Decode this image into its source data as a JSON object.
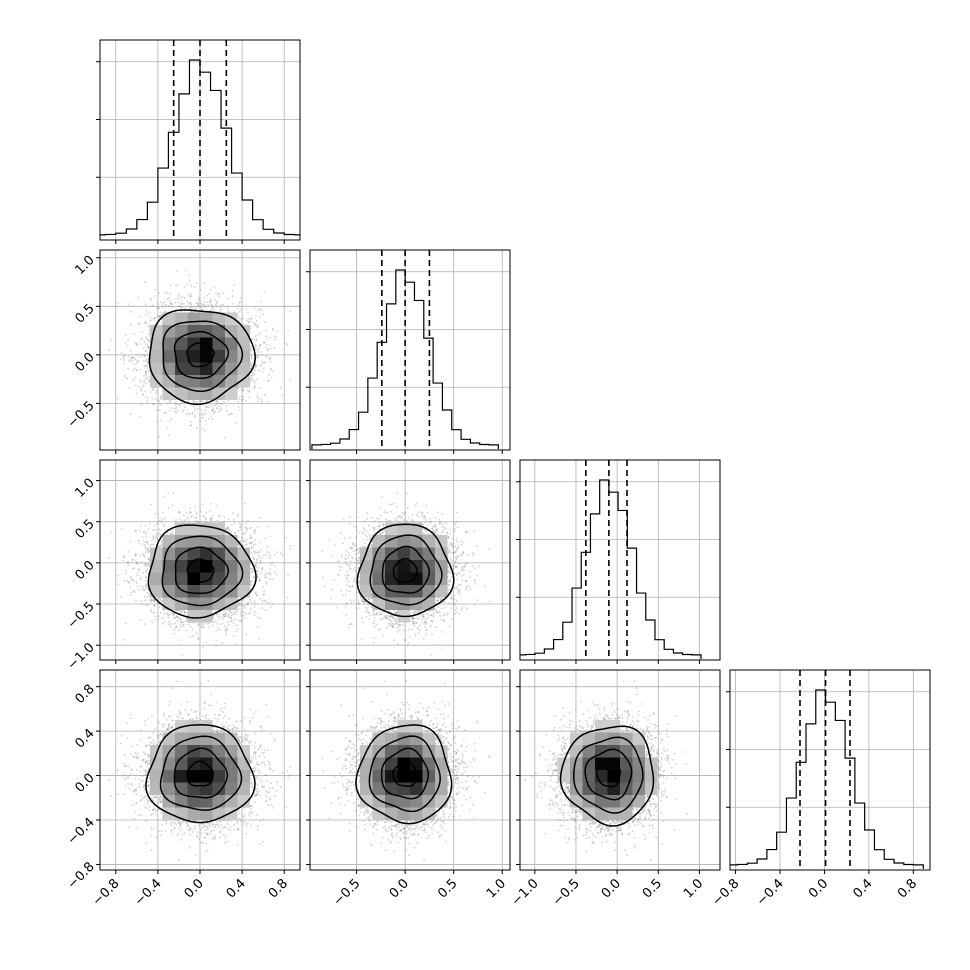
{
  "chart_data": {
    "type": "corner",
    "n_params": 4,
    "labels": [
      "",
      "",
      "",
      ""
    ],
    "grid": true,
    "colors": {
      "line": "#000000",
      "grid": "#b0b0b0",
      "background": "#ffffff"
    },
    "ranges": [
      [
        -0.95,
        0.95
      ],
      [
        -0.98,
        1.08
      ],
      [
        -1.18,
        1.25
      ],
      [
        -0.85,
        0.95
      ]
    ],
    "x_ticks": [
      {
        "values": [
          -0.8,
          -0.4,
          0.0,
          0.4,
          0.8
        ],
        "labels": [
          "−0.8",
          "−0.4",
          "0.0",
          "0.4",
          "0.8"
        ]
      },
      {
        "values": [
          -0.5,
          0.0,
          0.5,
          1.0
        ],
        "labels": [
          "−0.5",
          "0.0",
          "0.5",
          "1.0"
        ]
      },
      {
        "values": [
          -1.0,
          -0.5,
          0.0,
          0.5,
          1.0
        ],
        "labels": [
          "−1.0",
          "−0.5",
          "0.0",
          "0.5",
          "1.0"
        ]
      },
      {
        "values": [
          -0.8,
          -0.4,
          0.0,
          0.4,
          0.8
        ],
        "labels": [
          "−0.8",
          "−0.4",
          "0.0",
          "0.4",
          "0.8"
        ]
      }
    ],
    "y_ticks": [
      null,
      {
        "values": [
          -0.5,
          0.0,
          0.5,
          1.0
        ],
        "labels": [
          "−0.5",
          "0.0",
          "0.5",
          "1.0"
        ]
      },
      {
        "values": [
          -1.0,
          -0.5,
          0.0,
          0.5,
          1.0
        ],
        "labels": [
          "−1.0",
          "−0.5",
          "0.0",
          "0.5",
          "1.0"
        ]
      },
      {
        "values": [
          -0.8,
          -0.4,
          0.0,
          0.4,
          0.8
        ],
        "labels": [
          "−0.8",
          "−0.4",
          "0.0",
          "0.4",
          "0.8"
        ]
      }
    ],
    "marginals": [
      {
        "mean": 0.0,
        "sd": 0.25,
        "quantiles": [
          -0.25,
          0.0,
          0.25
        ]
      },
      {
        "mean": 0.0,
        "sd": 0.24,
        "quantiles": [
          -0.24,
          0.0,
          0.25
        ]
      },
      {
        "mean": -0.1,
        "sd": 0.28,
        "quantiles": [
          -0.38,
          -0.1,
          0.12
        ]
      },
      {
        "mean": 0.01,
        "sd": 0.22,
        "quantiles": [
          -0.22,
          0.01,
          0.23
        ]
      }
    ]
  }
}
